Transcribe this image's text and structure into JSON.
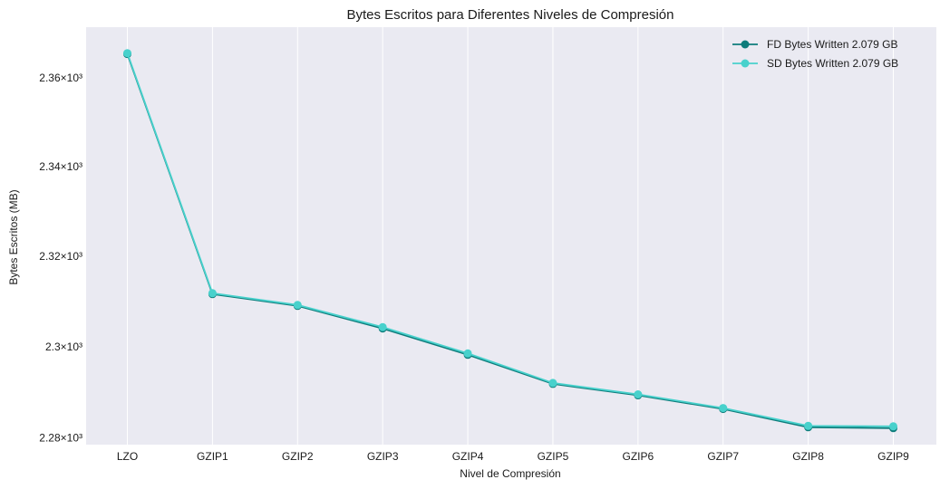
{
  "chart_data": {
    "type": "line",
    "title": "Bytes Escritos para Diferentes Niveles de Compresión",
    "xlabel": "Nivel de Compresión",
    "ylabel": "Bytes Escritos (MB)",
    "yscale": "log",
    "ylim": [
      2278.5,
      2371.5
    ],
    "grid": true,
    "legend": "top-right",
    "categories": [
      "LZO",
      "GZIP1",
      "GZIP2",
      "GZIP3",
      "GZIP4",
      "GZIP5",
      "GZIP6",
      "GZIP7",
      "GZIP8",
      "GZIP9"
    ],
    "y_ticks": [
      {
        "value": 2280,
        "label": "2.28×10³"
      },
      {
        "value": 2300,
        "label": "2.3×10³"
      },
      {
        "value": 2320,
        "label": "2.32×10³"
      },
      {
        "value": 2340,
        "label": "2.34×10³"
      },
      {
        "value": 2360,
        "label": "2.36×10³"
      }
    ],
    "series": [
      {
        "name": "FD Bytes Written 2.079 GB",
        "color": "#0e7c7b",
        "values": [
          2365.4,
          2311.6,
          2309.0,
          2304.0,
          2298.2,
          2291.8,
          2289.3,
          2286.3,
          2282.3,
          2282.1
        ]
      },
      {
        "name": "SD Bytes Written 2.079 GB",
        "color": "#48d1cc",
        "values": [
          2365.6,
          2311.8,
          2309.2,
          2304.3,
          2298.5,
          2292.0,
          2289.5,
          2286.5,
          2282.6,
          2282.5
        ]
      }
    ]
  }
}
